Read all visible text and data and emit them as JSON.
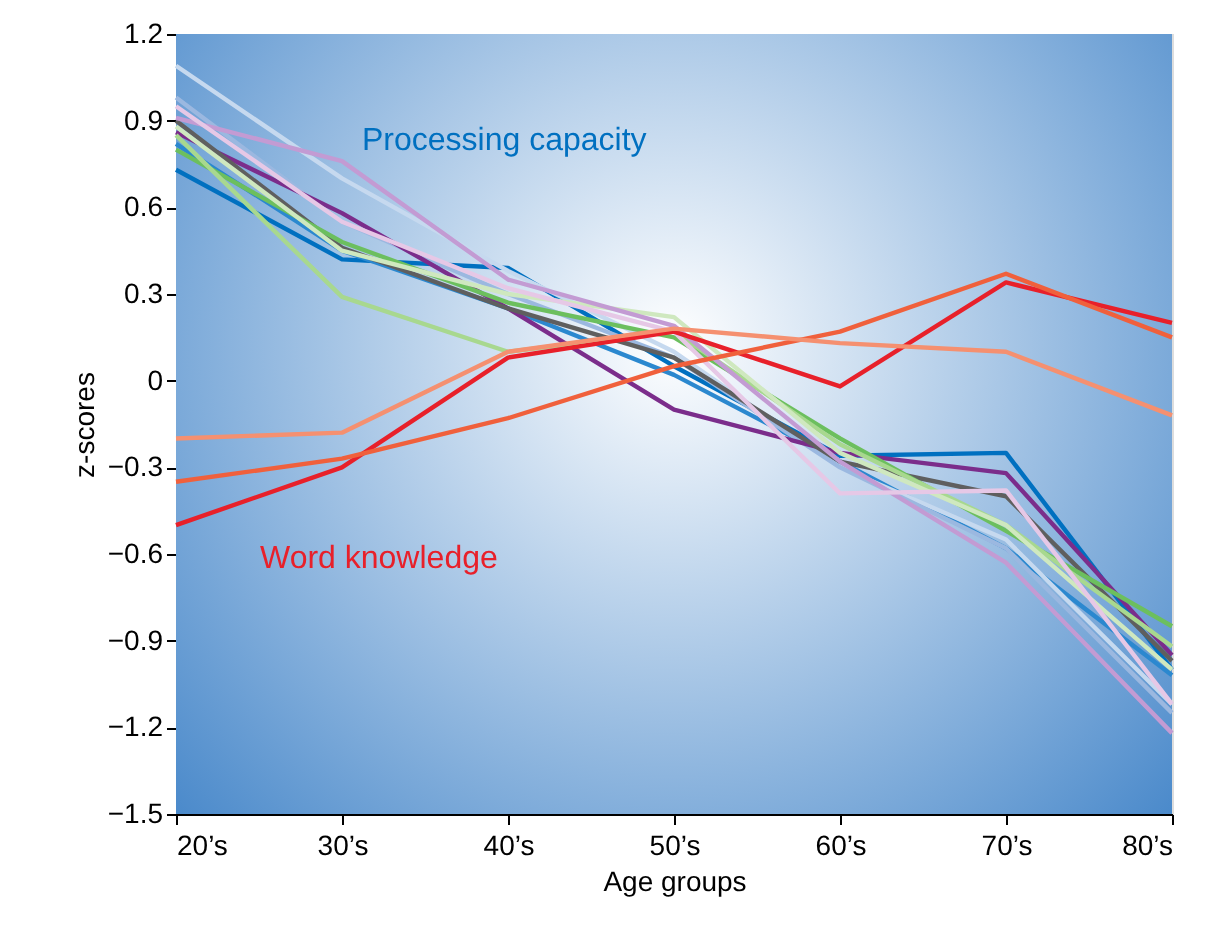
{
  "chart_data": {
    "type": "line",
    "xlabel": "Age groups",
    "ylabel": "z-scores",
    "categories": [
      "20’s",
      "30’s",
      "40’s",
      "50’s",
      "60’s",
      "70’s",
      "80’s"
    ],
    "ylim": [
      -1.5,
      1.2
    ],
    "yticks": [
      {
        "value": -1.5,
        "label": "−1.5"
      },
      {
        "value": -1.2,
        "label": "−1.2"
      },
      {
        "value": -0.9,
        "label": "−0.9"
      },
      {
        "value": -0.6,
        "label": "−0.6"
      },
      {
        "value": -0.3,
        "label": "−0.3"
      },
      0,
      0.3,
      0.6,
      0.9,
      1.2
    ],
    "legend": false,
    "marker": "none",
    "line_style": "solid",
    "series": [
      {
        "color": "#0070c0",
        "values": [
          0.73,
          0.42,
          0.39,
          0.05,
          -0.26,
          -0.25,
          -1.0
        ]
      },
      {
        "color": "#2b88cf",
        "values": [
          0.82,
          0.45,
          0.25,
          0.02,
          -0.28,
          -0.58,
          -1.02
        ]
      },
      {
        "color": "#c6d9ef",
        "values": [
          1.09,
          0.7,
          0.38,
          0.1,
          -0.3,
          -0.55,
          -1.12
        ]
      },
      {
        "color": "#9bb8e0",
        "values": [
          0.98,
          0.55,
          0.3,
          0.08,
          -0.3,
          -0.58,
          -1.15
        ]
      },
      {
        "color": "#7b2d8b",
        "values": [
          0.86,
          0.58,
          0.25,
          -0.1,
          -0.25,
          -0.32,
          -0.95
        ]
      },
      {
        "color": "#5f5f5f",
        "values": [
          0.9,
          0.46,
          0.25,
          0.08,
          -0.28,
          -0.4,
          -0.97
        ]
      },
      {
        "color": "#6cbf5e",
        "values": [
          0.8,
          0.48,
          0.27,
          0.15,
          -0.2,
          -0.52,
          -0.85
        ]
      },
      {
        "color": "#a8d88f",
        "values": [
          0.85,
          0.29,
          0.1,
          0.17,
          -0.22,
          -0.5,
          -0.92
        ]
      },
      {
        "color": "#cfe8bf",
        "values": [
          0.88,
          0.45,
          0.3,
          0.22,
          -0.25,
          -0.5,
          -1.0
        ]
      },
      {
        "color": "#c39bd3",
        "values": [
          0.91,
          0.76,
          0.35,
          0.19,
          -0.28,
          -0.63,
          -1.22
        ]
      },
      {
        "color": "#e6c8e6",
        "values": [
          0.95,
          0.55,
          0.32,
          0.17,
          -0.39,
          -0.38,
          -1.12
        ]
      },
      {
        "color": "#e8202a",
        "values": [
          -0.5,
          -0.3,
          0.08,
          0.17,
          -0.02,
          0.34,
          0.2
        ]
      },
      {
        "color": "#f0603c",
        "values": [
          -0.35,
          -0.27,
          -0.13,
          0.05,
          0.17,
          0.37,
          0.15
        ]
      },
      {
        "color": "#f59070",
        "values": [
          -0.2,
          -0.18,
          0.1,
          0.18,
          0.13,
          0.1,
          -0.12
        ]
      }
    ],
    "annotations": [
      "Processing capacity",
      "Word knowledge"
    ]
  }
}
